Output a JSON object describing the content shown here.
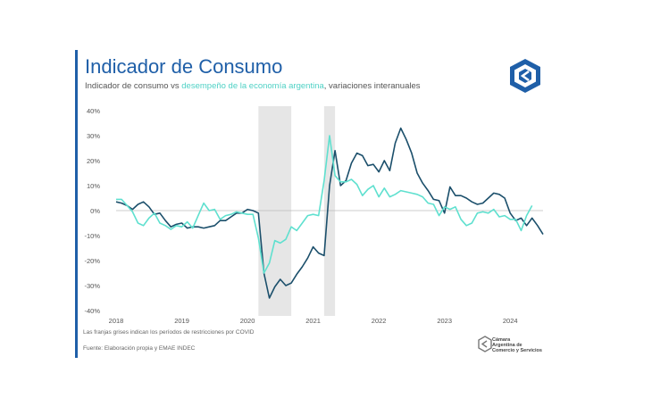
{
  "header": {
    "title": "Indicador de Consumo",
    "subtitle_prefix": "Indicador de consumo vs ",
    "subtitle_highlight": "desempeño de la economía argentina",
    "subtitle_suffix": ", variaciones interanuales"
  },
  "footer": {
    "note": "Las franjas grises indican los períodos de restricciones por COVID",
    "source": "Fuente: Elaboración propia y EMAE INDEC"
  },
  "brand": {
    "name_lines": [
      "Cámara",
      "Argentina de",
      "Comercio y Servicios"
    ]
  },
  "colors": {
    "accent": "#1f5fa8",
    "consumo": "#1b4f6b",
    "economia": "#5fe0cf",
    "band": "#e6e6e6",
    "zero_line": "#bbbbbb"
  },
  "chart_data": {
    "type": "line",
    "title": "Indicador de Consumo",
    "x_range": [
      "2018-01",
      "2024-07"
    ],
    "ylim": [
      -40,
      40
    ],
    "y_ticks": [
      "40%",
      "30%",
      "20%",
      "10%",
      "0%",
      "-10%",
      "-20%",
      "-30%",
      "-40%"
    ],
    "x_ticks": [
      "2018",
      "2019",
      "2020",
      "2021",
      "2022",
      "2023",
      "2024"
    ],
    "shaded_periods": [
      {
        "start": "2020-03",
        "end": "2020-09"
      },
      {
        "start": "2021-03",
        "end": "2021-05"
      }
    ],
    "series": [
      {
        "name": "Indicador de consumo",
        "color": "#1b4f6b",
        "points": [
          [
            "2018-01",
            3.5
          ],
          [
            "2018-02",
            3
          ],
          [
            "2018-03",
            2
          ],
          [
            "2018-04",
            0.5
          ],
          [
            "2018-05",
            2.5
          ],
          [
            "2018-06",
            3.5
          ],
          [
            "2018-07",
            1.5
          ],
          [
            "2018-08",
            -1.5
          ],
          [
            "2018-09",
            -1
          ],
          [
            "2018-10",
            -4
          ],
          [
            "2018-11",
            -6.5
          ],
          [
            "2018-12",
            -5.5
          ],
          [
            "2019-01",
            -5
          ],
          [
            "2019-02",
            -7
          ],
          [
            "2019-03",
            -6.5
          ],
          [
            "2019-04",
            -6.5
          ],
          [
            "2019-05",
            -7
          ],
          [
            "2019-06",
            -6.5
          ],
          [
            "2019-07",
            -6
          ],
          [
            "2019-08",
            -4
          ],
          [
            "2019-09",
            -4
          ],
          [
            "2019-10",
            -2.5
          ],
          [
            "2019-11",
            -1
          ],
          [
            "2019-12",
            -1
          ],
          [
            "2020-01",
            0.5
          ],
          [
            "2020-02",
            0
          ],
          [
            "2020-03",
            -1
          ],
          [
            "2020-04",
            -25
          ],
          [
            "2020-05",
            -35
          ],
          [
            "2020-06",
            -30.5
          ],
          [
            "2020-07",
            -27.5
          ],
          [
            "2020-08",
            -30
          ],
          [
            "2020-09",
            -29
          ],
          [
            "2020-10",
            -25.5
          ],
          [
            "2020-11",
            -22.5
          ],
          [
            "2020-12",
            -19
          ],
          [
            "2021-01",
            -14.5
          ],
          [
            "2021-02",
            -17
          ],
          [
            "2021-03",
            -18
          ],
          [
            "2021-04",
            10
          ],
          [
            "2021-05",
            24
          ],
          [
            "2021-06",
            10
          ],
          [
            "2021-07",
            12
          ],
          [
            "2021-08",
            19
          ],
          [
            "2021-09",
            23
          ],
          [
            "2021-10",
            22
          ],
          [
            "2021-11",
            18
          ],
          [
            "2021-12",
            18.5
          ],
          [
            "2022-01",
            15.5
          ],
          [
            "2022-02",
            20
          ],
          [
            "2022-03",
            16
          ],
          [
            "2022-04",
            27
          ],
          [
            "2022-05",
            33
          ],
          [
            "2022-06",
            28.5
          ],
          [
            "2022-07",
            23
          ],
          [
            "2022-08",
            15
          ],
          [
            "2022-09",
            11
          ],
          [
            "2022-10",
            8
          ],
          [
            "2022-11",
            4.5
          ],
          [
            "2022-12",
            4
          ],
          [
            "2023-01",
            -1
          ],
          [
            "2023-02",
            9.5
          ],
          [
            "2023-03",
            6
          ],
          [
            "2023-04",
            6
          ],
          [
            "2023-05",
            5
          ],
          [
            "2023-06",
            3.5
          ],
          [
            "2023-07",
            2.5
          ],
          [
            "2023-08",
            3
          ],
          [
            "2023-09",
            5
          ],
          [
            "2023-10",
            7
          ],
          [
            "2023-11",
            6.5
          ],
          [
            "2023-12",
            5
          ],
          [
            "2024-01",
            -1
          ],
          [
            "2024-02",
            -4
          ],
          [
            "2024-03",
            -3
          ],
          [
            "2024-04",
            -6
          ],
          [
            "2024-05",
            -3
          ],
          [
            "2024-06",
            -6
          ],
          [
            "2024-07",
            -9.5
          ]
        ]
      },
      {
        "name": "desempeño de la economía argentina",
        "color": "#5fe0cf",
        "points": [
          [
            "2018-01",
            4.5
          ],
          [
            "2018-02",
            4.5
          ],
          [
            "2018-03",
            2
          ],
          [
            "2018-04",
            -0.5
          ],
          [
            "2018-05",
            -5
          ],
          [
            "2018-06",
            -6
          ],
          [
            "2018-07",
            -3
          ],
          [
            "2018-08",
            -1
          ],
          [
            "2018-09",
            -5
          ],
          [
            "2018-10",
            -6
          ],
          [
            "2018-11",
            -7.5
          ],
          [
            "2018-12",
            -6
          ],
          [
            "2019-01",
            -6.5
          ],
          [
            "2019-02",
            -4.5
          ],
          [
            "2019-03",
            -7
          ],
          [
            "2019-04",
            -2
          ],
          [
            "2019-05",
            3
          ],
          [
            "2019-06",
            0
          ],
          [
            "2019-07",
            0.5
          ],
          [
            "2019-08",
            -3.5
          ],
          [
            "2019-09",
            -2
          ],
          [
            "2019-10",
            -1.5
          ],
          [
            "2019-11",
            -0.5
          ],
          [
            "2019-12",
            -1
          ],
          [
            "2020-01",
            -1.5
          ],
          [
            "2020-02",
            -1.5
          ],
          [
            "2020-03",
            -11
          ],
          [
            "2020-04",
            -25
          ],
          [
            "2020-05",
            -21
          ],
          [
            "2020-06",
            -12
          ],
          [
            "2020-07",
            -13
          ],
          [
            "2020-08",
            -11.5
          ],
          [
            "2020-09",
            -6.5
          ],
          [
            "2020-10",
            -8
          ],
          [
            "2020-11",
            -5
          ],
          [
            "2020-12",
            -2
          ],
          [
            "2021-01",
            -1.5
          ],
          [
            "2021-02",
            -2
          ],
          [
            "2021-03",
            12
          ],
          [
            "2021-04",
            30
          ],
          [
            "2021-05",
            14
          ],
          [
            "2021-06",
            11.5
          ],
          [
            "2021-07",
            11.5
          ],
          [
            "2021-08",
            12.5
          ],
          [
            "2021-09",
            10.5
          ],
          [
            "2021-10",
            6
          ],
          [
            "2021-11",
            8.5
          ],
          [
            "2021-12",
            10
          ],
          [
            "2022-01",
            5.5
          ],
          [
            "2022-02",
            9
          ],
          [
            "2022-03",
            5.5
          ],
          [
            "2022-04",
            6.5
          ],
          [
            "2022-05",
            8
          ],
          [
            "2022-06",
            7.5
          ],
          [
            "2022-07",
            7
          ],
          [
            "2022-08",
            6.5
          ],
          [
            "2022-09",
            5.5
          ],
          [
            "2022-10",
            3
          ],
          [
            "2022-11",
            2.5
          ],
          [
            "2022-12",
            -2
          ],
          [
            "2023-01",
            1.5
          ],
          [
            "2023-02",
            0.5
          ],
          [
            "2023-03",
            1.5
          ],
          [
            "2023-04",
            -3.5
          ],
          [
            "2023-05",
            -6
          ],
          [
            "2023-06",
            -5
          ],
          [
            "2023-07",
            -1
          ],
          [
            "2023-08",
            -0.5
          ],
          [
            "2023-09",
            -1
          ],
          [
            "2023-10",
            0.5
          ],
          [
            "2023-11",
            -2.5
          ],
          [
            "2023-12",
            -2
          ],
          [
            "2024-01",
            -3.5
          ],
          [
            "2024-02",
            -3.5
          ],
          [
            "2024-03",
            -8
          ],
          [
            "2024-04",
            -2
          ],
          [
            "2024-05",
            2
          ]
        ]
      }
    ]
  }
}
